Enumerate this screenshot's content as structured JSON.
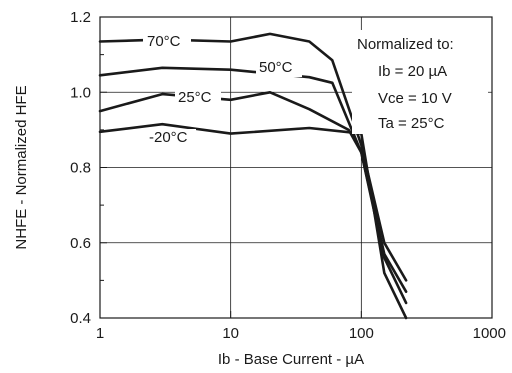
{
  "chart_data": {
    "type": "line",
    "xlabel": "Ib - Base Current - µA",
    "ylabel": "NHFE - Normalized HFE",
    "x_scale": "log",
    "xlim": [
      1,
      1000
    ],
    "ylim": [
      0.4,
      1.2
    ],
    "x_ticks": [
      "1",
      "10",
      "100",
      "1000"
    ],
    "y_ticks": [
      "0.4",
      "0.6",
      "0.8",
      "1.0",
      "1.2"
    ],
    "grid": true,
    "series": [
      {
        "name": "70°C",
        "x": [
          1,
          3,
          10,
          20,
          40,
          60,
          100,
          150,
          220
        ],
        "y": [
          1.135,
          1.14,
          1.135,
          1.155,
          1.135,
          1.085,
          0.86,
          0.6,
          0.5
        ]
      },
      {
        "name": "50°C",
        "x": [
          1,
          3,
          10,
          40,
          60,
          100,
          150,
          220
        ],
        "y": [
          1.045,
          1.065,
          1.06,
          1.04,
          1.025,
          0.84,
          0.57,
          0.47
        ]
      },
      {
        "name": "25°C",
        "x": [
          1,
          3,
          10,
          20,
          40,
          80,
          100,
          150,
          220
        ],
        "y": [
          0.95,
          0.995,
          0.98,
          1.0,
          0.955,
          0.9,
          0.84,
          0.56,
          0.44
        ]
      },
      {
        "name": "-20°C",
        "x": [
          1,
          3,
          10,
          40,
          100,
          150,
          220
        ],
        "y": [
          0.895,
          0.915,
          0.89,
          0.905,
          0.89,
          0.52,
          0.4
        ]
      }
    ],
    "annotation": [
      "Normalized to:",
      "Ib = 20 µA",
      "Vce = 10 V",
      "Ta = 25°C"
    ]
  }
}
